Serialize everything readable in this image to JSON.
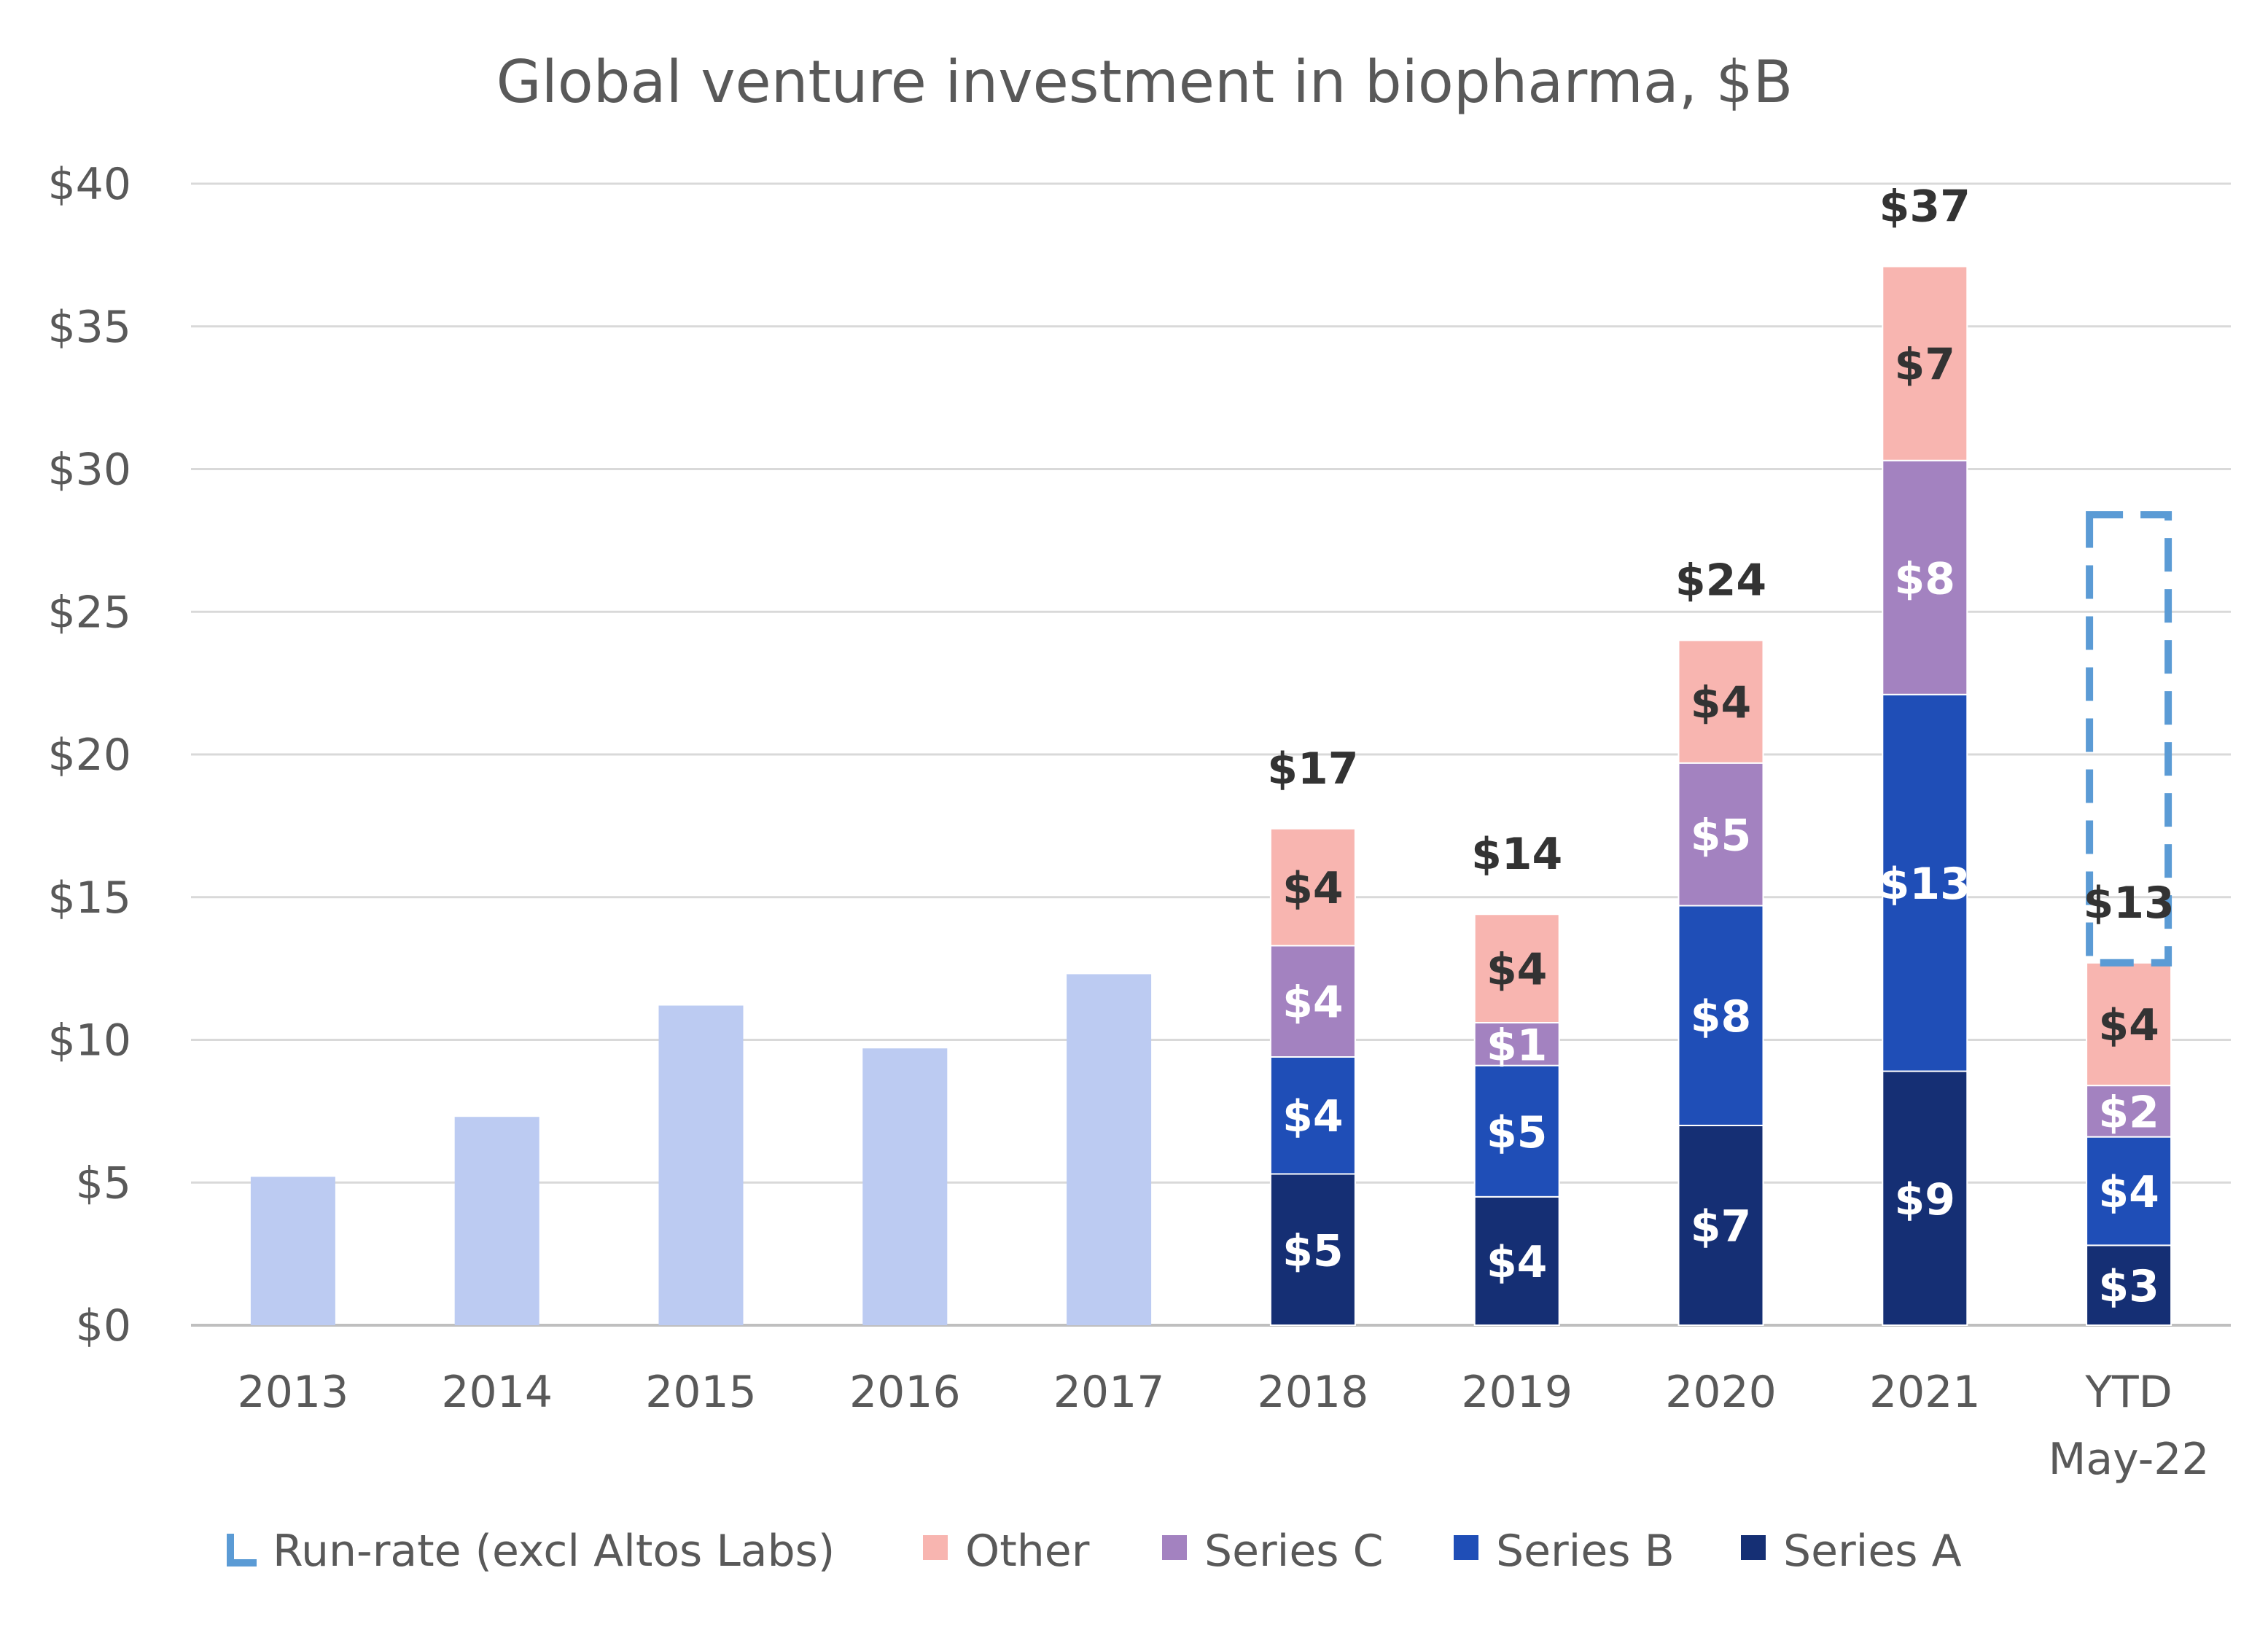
{
  "chart_data": {
    "type": "bar",
    "title": "Global venture investment in biopharma, $B",
    "ylim": [
      0,
      40
    ],
    "yticks": [
      "$0",
      "$5",
      "$10",
      "$15",
      "$20",
      "$25",
      "$30",
      "$35",
      "$40"
    ],
    "ytick_values": [
      0,
      5,
      10,
      15,
      20,
      25,
      30,
      35,
      40
    ],
    "grid": true,
    "legend_position": "bottom",
    "categories": [
      {
        "lines": [
          "2013"
        ]
      },
      {
        "lines": [
          "2014"
        ]
      },
      {
        "lines": [
          "2015"
        ]
      },
      {
        "lines": [
          "2016"
        ]
      },
      {
        "lines": [
          "2017"
        ]
      },
      {
        "lines": [
          "2018"
        ]
      },
      {
        "lines": [
          "2019"
        ]
      },
      {
        "lines": [
          "2020"
        ]
      },
      {
        "lines": [
          "2021"
        ]
      },
      {
        "lines": [
          "YTD",
          "May-22"
        ]
      }
    ],
    "unsplit_totals": [
      5.2,
      7.3,
      11.2,
      9.7,
      12.3,
      null,
      null,
      null,
      null,
      null
    ],
    "unsplit_color": "#bccbf2",
    "series": [
      {
        "name": "Series A",
        "color": "#152f74",
        "label_color": "#ffffff",
        "values": [
          null,
          null,
          null,
          null,
          null,
          5.3,
          4.5,
          7.0,
          8.9,
          2.8
        ],
        "labels": [
          "",
          "",
          "",
          "",
          "",
          "$5",
          "$4",
          "$7",
          "$9",
          "$3"
        ]
      },
      {
        "name": "Series B",
        "color": "#1f4eb7",
        "label_color": "#ffffff",
        "values": [
          null,
          null,
          null,
          null,
          null,
          4.1,
          4.6,
          7.7,
          13.2,
          3.8
        ],
        "labels": [
          "",
          "",
          "",
          "",
          "",
          "$4",
          "$5",
          "$8",
          "$13",
          "$4"
        ]
      },
      {
        "name": "Series C",
        "color": "#a382c0",
        "label_color": "#ffffff",
        "values": [
          null,
          null,
          null,
          null,
          null,
          3.9,
          1.5,
          5.0,
          8.2,
          1.8
        ],
        "labels": [
          "",
          "",
          "",
          "",
          "",
          "$4",
          "$1",
          "$5",
          "$8",
          "$2"
        ]
      },
      {
        "name": "Other",
        "color": "#f8b5b0",
        "label_color": "#333333",
        "values": [
          null,
          null,
          null,
          null,
          null,
          4.1,
          3.8,
          4.3,
          6.8,
          4.3
        ],
        "labels": [
          "",
          "",
          "",
          "",
          "",
          "$4",
          "$4",
          "$4",
          "$7",
          "$4"
        ]
      }
    ],
    "totals": [
      "",
      "",
      "",
      "",
      "",
      "$17",
      "$14",
      "$24",
      "$37",
      "$13"
    ],
    "run_rate": {
      "name": "Run-rate (excl Altos Labs)",
      "category_index": 9,
      "bottom": 12.7,
      "top": 28.4,
      "color": "#5b9bd5"
    },
    "legend": [
      {
        "name": "Run-rate (excl Altos Labs)",
        "kind": "dashed",
        "color": "#5b9bd5"
      },
      {
        "name": "Other",
        "kind": "fill",
        "color": "#f8b5b0"
      },
      {
        "name": "Series C",
        "kind": "fill",
        "color": "#a382c0"
      },
      {
        "name": "Series B",
        "kind": "fill",
        "color": "#1f4eb7"
      },
      {
        "name": "Series A",
        "kind": "fill",
        "color": "#152f74"
      }
    ]
  }
}
